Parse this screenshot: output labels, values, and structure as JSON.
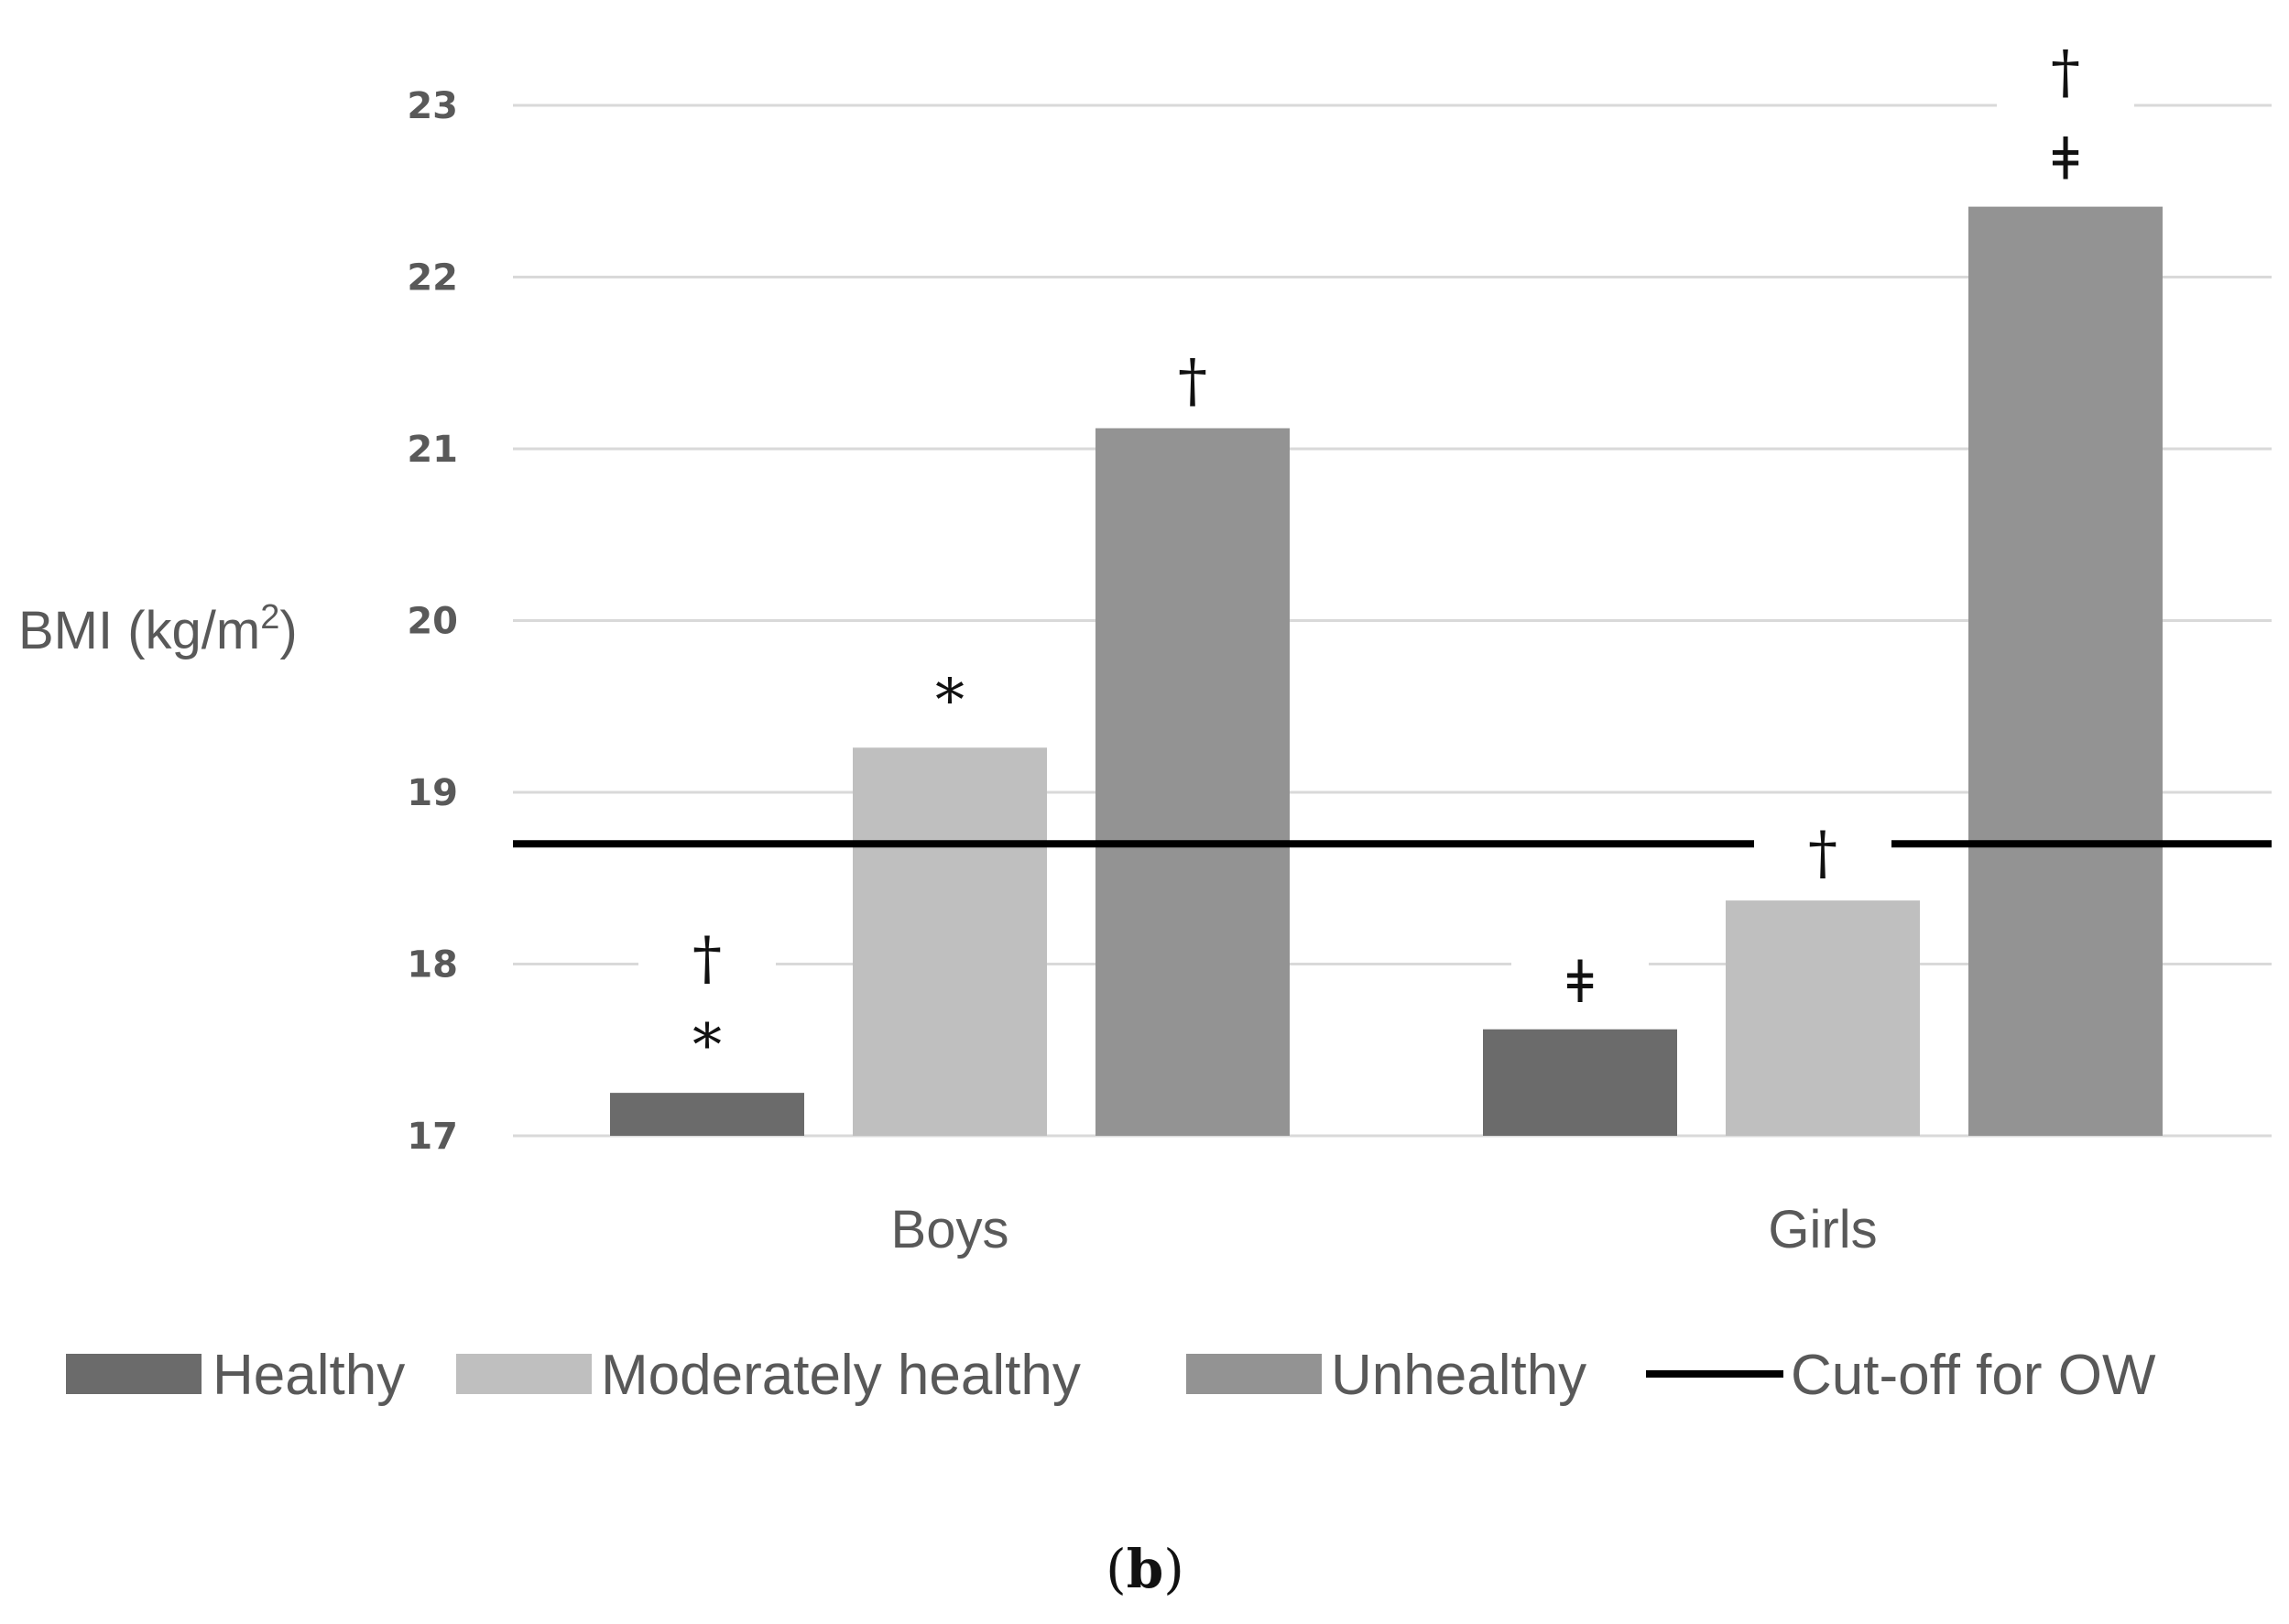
{
  "chart_data": {
    "type": "bar",
    "title": "",
    "xlabel": "",
    "ylabel": "BMI (kg/m",
    "ylabel_superscript": "2",
    "ylabel_suffix": ")",
    "ylim": [
      17,
      23
    ],
    "yticks": [
      17,
      18,
      19,
      20,
      21,
      22,
      23
    ],
    "grid": true,
    "categories": [
      "Boys",
      "Girls"
    ],
    "series": [
      {
        "name": "Healthy",
        "color": "#6b6b6b",
        "values": [
          17.25,
          17.62
        ],
        "annotations": [
          [
            "†",
            "*"
          ],
          [
            "ǂ"
          ]
        ]
      },
      {
        "name": "Moderately healthy",
        "color": "#bfbfbf",
        "values": [
          19.26,
          18.37
        ],
        "annotations": [
          [
            "*"
          ],
          [
            "†"
          ]
        ]
      },
      {
        "name": "Unhealthy",
        "color": "#939393",
        "values": [
          21.12,
          22.41
        ],
        "annotations": [
          [
            "†"
          ],
          [
            "†",
            "ǂ"
          ]
        ]
      }
    ],
    "reference_line": {
      "name": "Cut-off for OW",
      "value": 18.7,
      "color": "#000000"
    },
    "legend": {
      "position": "bottom",
      "items": [
        {
          "label": "Healthy",
          "kind": "bar",
          "color": "#6b6b6b"
        },
        {
          "label": "Moderately healthy",
          "kind": "bar",
          "color": "#bfbfbf"
        },
        {
          "label": "Unhealthy",
          "kind": "bar",
          "color": "#939393"
        },
        {
          "label": "Cut-off for OW",
          "kind": "line",
          "color": "#000000"
        }
      ]
    }
  },
  "panel_label": "(b)"
}
